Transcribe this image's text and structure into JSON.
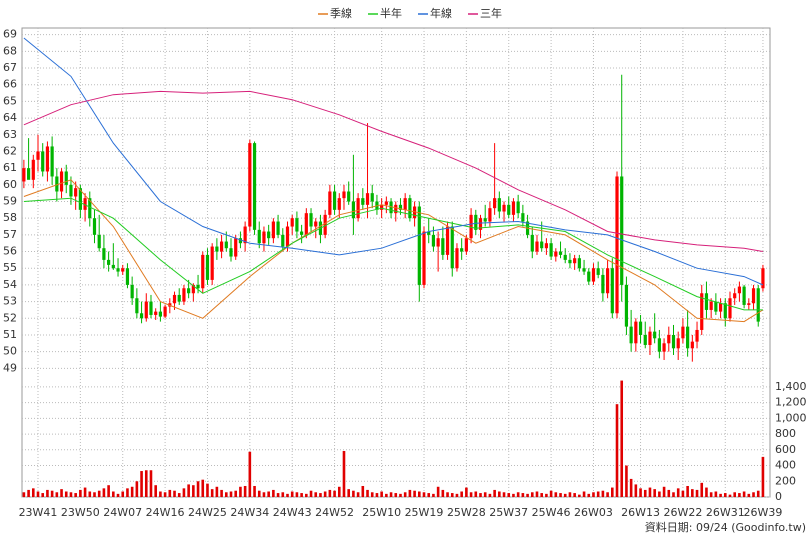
{
  "chart_data": {
    "type": "candlestick",
    "xlim": [
      -0.4,
      158.5
    ],
    "xticks": [
      {
        "value": 3,
        "label": "23W41"
      },
      {
        "value": 12,
        "label": "23W50"
      },
      {
        "value": 21,
        "label": "24W07"
      },
      {
        "value": 30,
        "label": "24W16"
      },
      {
        "value": 39,
        "label": "24W25"
      },
      {
        "value": 48,
        "label": "24W34"
      },
      {
        "value": 57,
        "label": "24W43"
      },
      {
        "value": 66,
        "label": "24W52"
      },
      {
        "value": 76,
        "label": "25W10"
      },
      {
        "value": 85,
        "label": "25W19"
      },
      {
        "value": 94,
        "label": "25W28"
      },
      {
        "value": 103,
        "label": "25W37"
      },
      {
        "value": 112,
        "label": "25W46"
      },
      {
        "value": 121,
        "label": "26W03"
      },
      {
        "value": 131,
        "label": "26W13"
      },
      {
        "value": 140,
        "label": "26W22"
      },
      {
        "value": 149,
        "label": "26W31"
      },
      {
        "value": 157,
        "label": "26W39"
      }
    ],
    "ylim": [
      48.6,
      69.4
    ],
    "yticks": [
      49,
      50,
      51,
      52,
      53,
      54,
      55,
      56,
      57,
      58,
      59,
      60,
      61,
      62,
      63,
      64,
      65,
      66,
      67,
      68,
      69
    ],
    "grid": true,
    "up_color": "#ff0000",
    "down_color": "#00b400",
    "ohlc": [
      [
        60.2,
        61.5,
        59.8,
        61.0
      ],
      [
        61.0,
        62.8,
        60.5,
        60.3
      ],
      [
        60.3,
        61.8,
        59.8,
        61.5
      ],
      [
        61.5,
        63.0,
        60.8,
        62.0
      ],
      [
        62.0,
        62.5,
        60.5,
        60.8
      ],
      [
        60.8,
        62.6,
        60.2,
        62.3
      ],
      [
        62.3,
        62.9,
        60.0,
        60.5
      ],
      [
        60.5,
        61.0,
        59.0,
        59.6
      ],
      [
        59.6,
        61.0,
        59.2,
        60.8
      ],
      [
        60.8,
        61.2,
        59.5,
        60.0
      ],
      [
        60.0,
        60.5,
        58.8,
        59.3
      ],
      [
        59.3,
        60.2,
        58.5,
        59.8
      ],
      [
        59.8,
        60.0,
        58.0,
        58.5
      ],
      [
        58.5,
        59.5,
        57.8,
        59.2
      ],
      [
        59.2,
        59.6,
        57.5,
        58.0
      ],
      [
        58.0,
        58.5,
        56.5,
        57.0
      ],
      [
        57.0,
        58.2,
        56.0,
        56.2
      ],
      [
        56.2,
        57.0,
        55.0,
        55.5
      ],
      [
        55.5,
        56.0,
        54.8,
        55.2
      ],
      [
        55.2,
        56.5,
        54.9,
        55.0
      ],
      [
        55.0,
        55.6,
        54.5,
        54.8
      ],
      [
        54.8,
        55.2,
        54.6,
        55.0
      ],
      [
        55.0,
        55.3,
        53.8,
        54.0
      ],
      [
        54.0,
        54.5,
        52.8,
        53.2
      ],
      [
        53.2,
        53.8,
        52.0,
        52.3
      ],
      [
        52.3,
        53.0,
        51.7,
        52.0
      ],
      [
        52.0,
        53.5,
        51.8,
        53.0
      ],
      [
        53.0,
        53.4,
        52.0,
        52.2
      ],
      [
        52.2,
        52.6,
        51.9,
        52.4
      ],
      [
        52.4,
        53.0,
        51.8,
        52.1
      ],
      [
        52.1,
        52.8,
        52.0,
        52.7
      ],
      [
        52.7,
        53.2,
        52.3,
        52.9
      ],
      [
        52.9,
        53.6,
        52.5,
        53.4
      ],
      [
        53.4,
        53.8,
        52.8,
        53.0
      ],
      [
        53.0,
        54.0,
        52.8,
        53.8
      ],
      [
        53.8,
        54.3,
        53.2,
        53.5
      ],
      [
        53.5,
        54.1,
        53.0,
        54.0
      ],
      [
        54.0,
        54.6,
        53.5,
        53.8
      ],
      [
        53.8,
        56.0,
        53.5,
        55.8
      ],
      [
        55.8,
        56.2,
        54.0,
        54.3
      ],
      [
        54.3,
        56.5,
        54.0,
        56.3
      ],
      [
        56.3,
        56.8,
        55.5,
        56.0
      ],
      [
        56.0,
        57.0,
        55.6,
        56.6
      ],
      [
        56.6,
        57.2,
        56.0,
        56.2
      ],
      [
        56.2,
        56.8,
        55.4,
        55.7
      ],
      [
        55.7,
        57.0,
        55.5,
        56.8
      ],
      [
        56.8,
        57.2,
        56.2,
        56.5
      ],
      [
        56.5,
        57.8,
        56.0,
        57.5
      ],
      [
        57.5,
        62.7,
        57.2,
        62.5
      ],
      [
        62.5,
        62.6,
        57.0,
        57.3
      ],
      [
        57.3,
        57.8,
        56.2,
        56.5
      ],
      [
        56.5,
        57.5,
        56.0,
        57.2
      ],
      [
        57.2,
        57.6,
        56.4,
        56.8
      ],
      [
        56.8,
        58.0,
        56.5,
        57.8
      ],
      [
        57.8,
        58.2,
        56.8,
        57.0
      ],
      [
        57.0,
        57.4,
        56.0,
        56.3
      ],
      [
        56.3,
        57.8,
        56.0,
        57.5
      ],
      [
        57.5,
        58.2,
        57.0,
        58.0
      ],
      [
        58.0,
        58.4,
        56.8,
        57.2
      ],
      [
        57.2,
        57.6,
        56.5,
        57.0
      ],
      [
        57.0,
        58.6,
        56.8,
        58.3
      ],
      [
        58.3,
        58.6,
        57.2,
        57.5
      ],
      [
        57.5,
        58.0,
        56.8,
        57.8
      ],
      [
        57.8,
        58.2,
        56.5,
        57.0
      ],
      [
        57.0,
        58.5,
        56.8,
        58.2
      ],
      [
        58.2,
        60.0,
        58.0,
        59.6
      ],
      [
        59.6,
        60.0,
        58.2,
        58.5
      ],
      [
        58.5,
        59.5,
        58.0,
        59.2
      ],
      [
        59.2,
        60.0,
        58.5,
        59.6
      ],
      [
        59.6,
        60.2,
        58.8,
        59.0
      ],
      [
        59.0,
        61.8,
        57.0,
        58.0
      ],
      [
        58.0,
        59.5,
        57.8,
        59.2
      ],
      [
        59.2,
        59.8,
        58.5,
        58.8
      ],
      [
        58.8,
        63.7,
        58.0,
        59.5
      ],
      [
        59.5,
        60.0,
        58.6,
        59.0
      ],
      [
        59.0,
        59.4,
        58.2,
        58.5
      ],
      [
        58.5,
        59.2,
        58.0,
        58.8
      ],
      [
        58.8,
        59.3,
        58.3,
        59.0
      ],
      [
        59.0,
        59.2,
        58.0,
        58.3
      ],
      [
        58.3,
        59.0,
        57.8,
        58.8
      ],
      [
        58.8,
        59.2,
        58.2,
        58.5
      ],
      [
        58.5,
        59.5,
        58.0,
        59.2
      ],
      [
        59.2,
        59.4,
        57.8,
        58.0
      ],
      [
        58.0,
        59.0,
        57.5,
        58.7
      ],
      [
        58.7,
        59.0,
        53.0,
        54.0
      ],
      [
        54.0,
        57.5,
        53.8,
        57.2
      ],
      [
        57.2,
        58.0,
        56.5,
        57.0
      ],
      [
        57.0,
        57.5,
        56.0,
        56.3
      ],
      [
        56.3,
        57.2,
        54.8,
        56.8
      ],
      [
        56.8,
        57.5,
        55.5,
        55.8
      ],
      [
        55.8,
        57.8,
        55.5,
        57.5
      ],
      [
        57.5,
        57.8,
        54.5,
        55.0
      ],
      [
        55.0,
        56.5,
        54.8,
        56.2
      ],
      [
        56.2,
        56.8,
        55.5,
        56.0
      ],
      [
        56.0,
        57.0,
        55.8,
        56.8
      ],
      [
        56.8,
        58.6,
        56.5,
        58.2
      ],
      [
        58.2,
        58.5,
        57.0,
        57.3
      ],
      [
        57.3,
        58.2,
        56.8,
        58.0
      ],
      [
        58.0,
        58.8,
        57.5,
        57.8
      ],
      [
        57.8,
        59.0,
        57.5,
        58.6
      ],
      [
        58.6,
        62.5,
        58.2,
        59.2
      ],
      [
        59.2,
        59.6,
        58.0,
        58.4
      ],
      [
        58.4,
        59.0,
        57.8,
        58.8
      ],
      [
        58.8,
        59.3,
        58.0,
        58.2
      ],
      [
        58.2,
        59.2,
        57.8,
        59.0
      ],
      [
        59.0,
        59.4,
        58.0,
        58.3
      ],
      [
        58.3,
        58.8,
        57.5,
        57.8
      ],
      [
        57.8,
        58.2,
        56.8,
        57.0
      ],
      [
        57.0,
        57.5,
        55.6,
        56.0
      ],
      [
        56.0,
        57.0,
        55.8,
        56.6
      ],
      [
        56.6,
        57.8,
        56.0,
        56.2
      ],
      [
        56.2,
        56.8,
        55.8,
        56.5
      ],
      [
        56.5,
        56.8,
        55.5,
        55.7
      ],
      [
        55.7,
        56.2,
        55.4,
        56.0
      ],
      [
        56.0,
        56.6,
        55.6,
        55.8
      ],
      [
        55.8,
        56.2,
        55.3,
        55.5
      ],
      [
        55.5,
        55.9,
        55.0,
        55.3
      ],
      [
        55.3,
        55.8,
        54.9,
        55.6
      ],
      [
        55.6,
        55.8,
        54.8,
        55.0
      ],
      [
        55.0,
        55.5,
        54.6,
        54.8
      ],
      [
        54.8,
        55.0,
        54.0,
        54.2
      ],
      [
        54.2,
        55.3,
        54.0,
        55.0
      ],
      [
        55.0,
        55.4,
        54.4,
        54.6
      ],
      [
        54.6,
        55.0,
        53.0,
        53.5
      ],
      [
        53.5,
        55.5,
        53.2,
        55.0
      ],
      [
        55.0,
        55.6,
        52.0,
        52.3
      ],
      [
        52.3,
        60.8,
        52.0,
        60.5
      ],
      [
        60.5,
        66.6,
        53.0,
        54.0
      ],
      [
        54.0,
        54.5,
        51.0,
        51.5
      ],
      [
        51.5,
        52.5,
        50.0,
        50.5
      ],
      [
        50.5,
        52.0,
        50.0,
        51.8
      ],
      [
        51.8,
        52.2,
        50.5,
        51.0
      ],
      [
        51.0,
        51.8,
        50.2,
        50.4
      ],
      [
        50.4,
        51.5,
        49.8,
        51.2
      ],
      [
        51.2,
        52.3,
        50.5,
        50.8
      ],
      [
        50.8,
        51.3,
        49.6,
        50.0
      ],
      [
        50.0,
        50.8,
        49.5,
        50.5
      ],
      [
        50.5,
        51.5,
        50.0,
        51.0
      ],
      [
        51.0,
        51.6,
        49.8,
        50.2
      ],
      [
        50.2,
        51.2,
        49.5,
        50.8
      ],
      [
        50.8,
        52.0,
        50.5,
        51.5
      ],
      [
        51.5,
        52.5,
        49.7,
        50.2
      ],
      [
        50.2,
        51.0,
        49.4,
        50.6
      ],
      [
        50.6,
        51.8,
        50.2,
        51.3
      ],
      [
        51.3,
        54.0,
        51.0,
        53.5
      ],
      [
        53.5,
        54.2,
        52.0,
        52.5
      ],
      [
        52.5,
        53.2,
        52.0,
        53.0
      ],
      [
        53.0,
        53.5,
        52.2,
        52.4
      ],
      [
        52.4,
        53.2,
        52.0,
        52.9
      ],
      [
        52.9,
        53.2,
        51.5,
        52.0
      ],
      [
        52.0,
        53.6,
        51.8,
        53.2
      ],
      [
        53.2,
        53.8,
        52.8,
        53.5
      ],
      [
        53.5,
        54.2,
        53.0,
        53.9
      ],
      [
        53.9,
        54.0,
        52.6,
        52.8
      ],
      [
        52.8,
        53.2,
        52.5,
        52.9
      ],
      [
        52.9,
        54.0,
        52.5,
        53.8
      ],
      [
        53.8,
        54.0,
        51.5,
        51.8
      ],
      [
        53.8,
        55.2,
        53.6,
        55.0
      ]
    ],
    "series": [
      {
        "name": "季線",
        "color": "#e07a20",
        "x": [
          0,
          10,
          19,
          29,
          38,
          48,
          57,
          67,
          76,
          86,
          96,
          105,
          115,
          124,
          134,
          143,
          153,
          157
        ],
        "values": [
          59.3,
          60.3,
          57.5,
          53,
          52,
          54.5,
          56.5,
          58.2,
          58.8,
          58.2,
          56.5,
          57.5,
          57,
          55.5,
          54,
          52,
          51.8,
          52.5
        ]
      },
      {
        "name": "半年",
        "color": "#22cc22",
        "x": [
          0,
          10,
          19,
          29,
          38,
          48,
          57,
          67,
          76,
          86,
          96,
          105,
          115,
          124,
          134,
          143,
          153,
          157
        ],
        "values": [
          59,
          59.2,
          58,
          55.5,
          53.5,
          54.8,
          56.5,
          58,
          58.6,
          58,
          57.4,
          57.6,
          57.2,
          55.8,
          54.5,
          53.3,
          52.5,
          52.5
        ]
      },
      {
        "name": "年線",
        "color": "#2a6fd6",
        "x": [
          0,
          10,
          19,
          29,
          38,
          48,
          57,
          67,
          76,
          86,
          96,
          105,
          115,
          124,
          134,
          143,
          153,
          157
        ],
        "values": [
          68.8,
          66.5,
          62.5,
          59,
          57.5,
          56.5,
          56.2,
          55.8,
          56.2,
          57.2,
          57.7,
          57.8,
          57.3,
          57,
          56,
          55,
          54.5,
          54
        ]
      },
      {
        "name": "三年",
        "color": "#d6207a",
        "x": [
          0,
          10,
          19,
          29,
          38,
          48,
          57,
          67,
          76,
          86,
          96,
          105,
          115,
          124,
          134,
          143,
          153,
          157
        ],
        "values": [
          63.6,
          64.8,
          65.4,
          65.6,
          65.5,
          65.6,
          65.1,
          64.2,
          63.2,
          62.2,
          61,
          59.7,
          58.5,
          57.2,
          56.7,
          56.4,
          56.2,
          56
        ]
      }
    ],
    "volume": {
      "color": "#e00000",
      "ylim": [
        0,
        1500
      ],
      "yticks": [
        0,
        200,
        400,
        600,
        800,
        {
          "value": 1000,
          "label": "1,000"
        },
        {
          "value": 1200,
          "label": "1,200"
        },
        {
          "value": 1400,
          "label": "1,400"
        }
      ],
      "values": [
        60,
        90,
        110,
        70,
        50,
        90,
        80,
        60,
        100,
        70,
        60,
        50,
        90,
        120,
        70,
        60,
        80,
        110,
        150,
        70,
        40,
        70,
        110,
        130,
        200,
        330,
        340,
        340,
        150,
        70,
        60,
        90,
        80,
        50,
        110,
        160,
        150,
        200,
        220,
        170,
        100,
        130,
        90,
        60,
        70,
        80,
        130,
        140,
        575,
        140,
        80,
        60,
        70,
        90,
        50,
        60,
        40,
        70,
        60,
        50,
        40,
        80,
        60,
        50,
        70,
        90,
        80,
        130,
        585,
        100,
        80,
        60,
        140,
        90,
        60,
        50,
        70,
        40,
        60,
        50,
        40,
        60,
        90,
        80,
        70,
        60,
        50,
        40,
        130,
        90,
        60,
        50,
        40,
        70,
        120,
        60,
        70,
        50,
        60,
        40,
        90,
        70,
        60,
        50,
        40,
        60,
        50,
        40,
        60,
        70,
        50,
        40,
        80,
        60,
        50,
        40,
        60,
        50,
        30,
        70,
        40,
        60,
        70,
        80,
        60,
        120,
        1180,
        1480,
        400,
        230,
        160,
        110,
        90,
        120,
        100,
        70,
        130,
        90,
        60,
        110,
        80,
        140,
        100,
        90,
        180,
        120,
        60,
        70,
        40,
        50,
        30,
        60,
        50,
        70,
        40,
        60,
        80,
        510
      ]
    },
    "note": "資料日期: 09/24  (Goodinfo.tw)"
  }
}
